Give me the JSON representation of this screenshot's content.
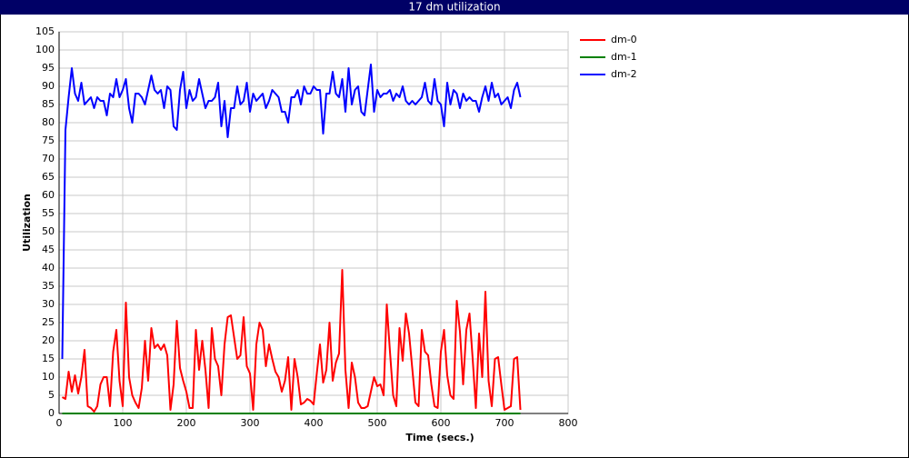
{
  "chart_data": {
    "type": "line",
    "title": "17 dm utilization",
    "x_label": "Time (secs.)",
    "y_label": "Utilization",
    "xlim": [
      0,
      800
    ],
    "xticks": [
      0,
      100,
      200,
      300,
      400,
      500,
      600,
      700,
      800
    ],
    "ylim": [
      0,
      105
    ],
    "yticks": [
      0,
      5,
      10,
      15,
      20,
      25,
      30,
      35,
      40,
      45,
      50,
      55,
      60,
      65,
      70,
      75,
      80,
      85,
      90,
      95,
      100,
      105
    ],
    "grid": true,
    "legend": "right",
    "x": [
      5,
      10,
      15,
      20,
      25,
      30,
      35,
      40,
      45,
      50,
      55,
      60,
      65,
      70,
      75,
      80,
      85,
      90,
      95,
      100,
      105,
      110,
      115,
      120,
      125,
      130,
      135,
      140,
      145,
      150,
      155,
      160,
      165,
      170,
      175,
      180,
      185,
      190,
      195,
      200,
      205,
      210,
      215,
      220,
      225,
      230,
      235,
      240,
      245,
      250,
      255,
      260,
      265,
      270,
      275,
      280,
      285,
      290,
      295,
      300,
      305,
      310,
      315,
      320,
      325,
      330,
      335,
      340,
      345,
      350,
      355,
      360,
      365,
      370,
      375,
      380,
      385,
      390,
      395,
      400,
      405,
      410,
      415,
      420,
      425,
      430,
      435,
      440,
      445,
      450,
      455,
      460,
      465,
      470,
      475,
      480,
      485,
      490,
      495,
      500,
      505,
      510,
      515,
      520,
      525,
      530,
      535,
      540,
      545,
      550,
      555,
      560,
      565,
      570,
      575,
      580,
      585,
      590,
      595,
      600,
      605,
      610,
      615,
      620,
      625,
      630,
      635,
      640,
      645,
      650,
      655,
      660,
      665,
      670,
      675,
      680,
      685,
      690,
      695,
      700,
      705,
      710,
      715,
      720,
      725
    ],
    "series": [
      {
        "name": "dm-0",
        "color": "#ff0000",
        "values": [
          4.5,
          4,
          11.5,
          6,
          10.5,
          5.5,
          10,
          17.5,
          2,
          1.5,
          0.5,
          2,
          8,
          10,
          10,
          2,
          17,
          23,
          9,
          2,
          30.5,
          10,
          5,
          3,
          1.5,
          7,
          20,
          9,
          23.5,
          18,
          19,
          17.5,
          19,
          16,
          1,
          8,
          25.5,
          12.5,
          9,
          6,
          1.5,
          1.5,
          23,
          12,
          20,
          12,
          1.5,
          23.5,
          15,
          13,
          5,
          19,
          26.5,
          27,
          21,
          15,
          16,
          26.5,
          13,
          11,
          1,
          19,
          25,
          23,
          13,
          19,
          15,
          11.5,
          10,
          6,
          9,
          15.5,
          1,
          15,
          10,
          2.5,
          3,
          4,
          3.5,
          2.5,
          11,
          19,
          8.5,
          12,
          25,
          9,
          14,
          16.5,
          39.5,
          12,
          1.5,
          14,
          10,
          3,
          1.5,
          1.5,
          2,
          6,
          10,
          7.5,
          8,
          5,
          30,
          17,
          5,
          2,
          23.5,
          14.5,
          27.5,
          22,
          12.5,
          3,
          2,
          23,
          17,
          16,
          8,
          2,
          1.5,
          17,
          23,
          10.5,
          5,
          4,
          31,
          22.5,
          8,
          23,
          27.5,
          15,
          1.5,
          22,
          10,
          33.5,
          9,
          2,
          15,
          15.5,
          8,
          1,
          1.5,
          2,
          15,
          15.5,
          1
        ]
      },
      {
        "name": "dm-1",
        "color": "#008000",
        "values": [
          0,
          0,
          0,
          0,
          0,
          0,
          0,
          0,
          0,
          0,
          0,
          0,
          0,
          0,
          0,
          0,
          0,
          0,
          0,
          0,
          0,
          0,
          0,
          0,
          0,
          0,
          0,
          0,
          0,
          0,
          0,
          0,
          0,
          0,
          0,
          0,
          0,
          0,
          0,
          0,
          0,
          0,
          0,
          0,
          0,
          0,
          0,
          0,
          0,
          0,
          0,
          0,
          0,
          0,
          0,
          0,
          0,
          0,
          0,
          0,
          0,
          0,
          0,
          0,
          0,
          0,
          0,
          0,
          0,
          0,
          0,
          0,
          0,
          0,
          0,
          0,
          0,
          0,
          0,
          0,
          0,
          0,
          0,
          0,
          0,
          0,
          0,
          0,
          0,
          0,
          0,
          0,
          0,
          0,
          0,
          0,
          0,
          0,
          0,
          0,
          0,
          0,
          0,
          0,
          0,
          0,
          0,
          0,
          0,
          0,
          0,
          0,
          0,
          0,
          0,
          0,
          0,
          0,
          0,
          0,
          0,
          0,
          0,
          0,
          0,
          0,
          0,
          0,
          0,
          0,
          0,
          0,
          0,
          0,
          0,
          0,
          0,
          0,
          0,
          0,
          0,
          0,
          0,
          0,
          0
        ]
      },
      {
        "name": "dm-2",
        "color": "#0000ff",
        "values": [
          15,
          78,
          87,
          95,
          88,
          86,
          91,
          85,
          86,
          87,
          84,
          87,
          86,
          86,
          82,
          88,
          87,
          92,
          87,
          89,
          92,
          84,
          80,
          88,
          88,
          87,
          85,
          89,
          93,
          89,
          88,
          89,
          84,
          90,
          89,
          79,
          78,
          89,
          94,
          84,
          89,
          86,
          87,
          92,
          88,
          84,
          86,
          86,
          87,
          91,
          79,
          86,
          76,
          84,
          84,
          90,
          85,
          86,
          91,
          83,
          88,
          86,
          87,
          88,
          84,
          86,
          89,
          88,
          87,
          83,
          83,
          80,
          87,
          87,
          89,
          85,
          90,
          88,
          88,
          90,
          89,
          89,
          77,
          88,
          88,
          94,
          88,
          87,
          92,
          83,
          95,
          85,
          89,
          90,
          83,
          82,
          89,
          96,
          83,
          89,
          87,
          88,
          88,
          89,
          86,
          88,
          87,
          90,
          86,
          85,
          86,
          85,
          86,
          87,
          91,
          86,
          85,
          92,
          86,
          85,
          79,
          91,
          85,
          89,
          88,
          84,
          88,
          86,
          87,
          86,
          86,
          83,
          87,
          90,
          86,
          91,
          87,
          88,
          85,
          86,
          87,
          84,
          89,
          91,
          87
        ]
      }
    ]
  }
}
